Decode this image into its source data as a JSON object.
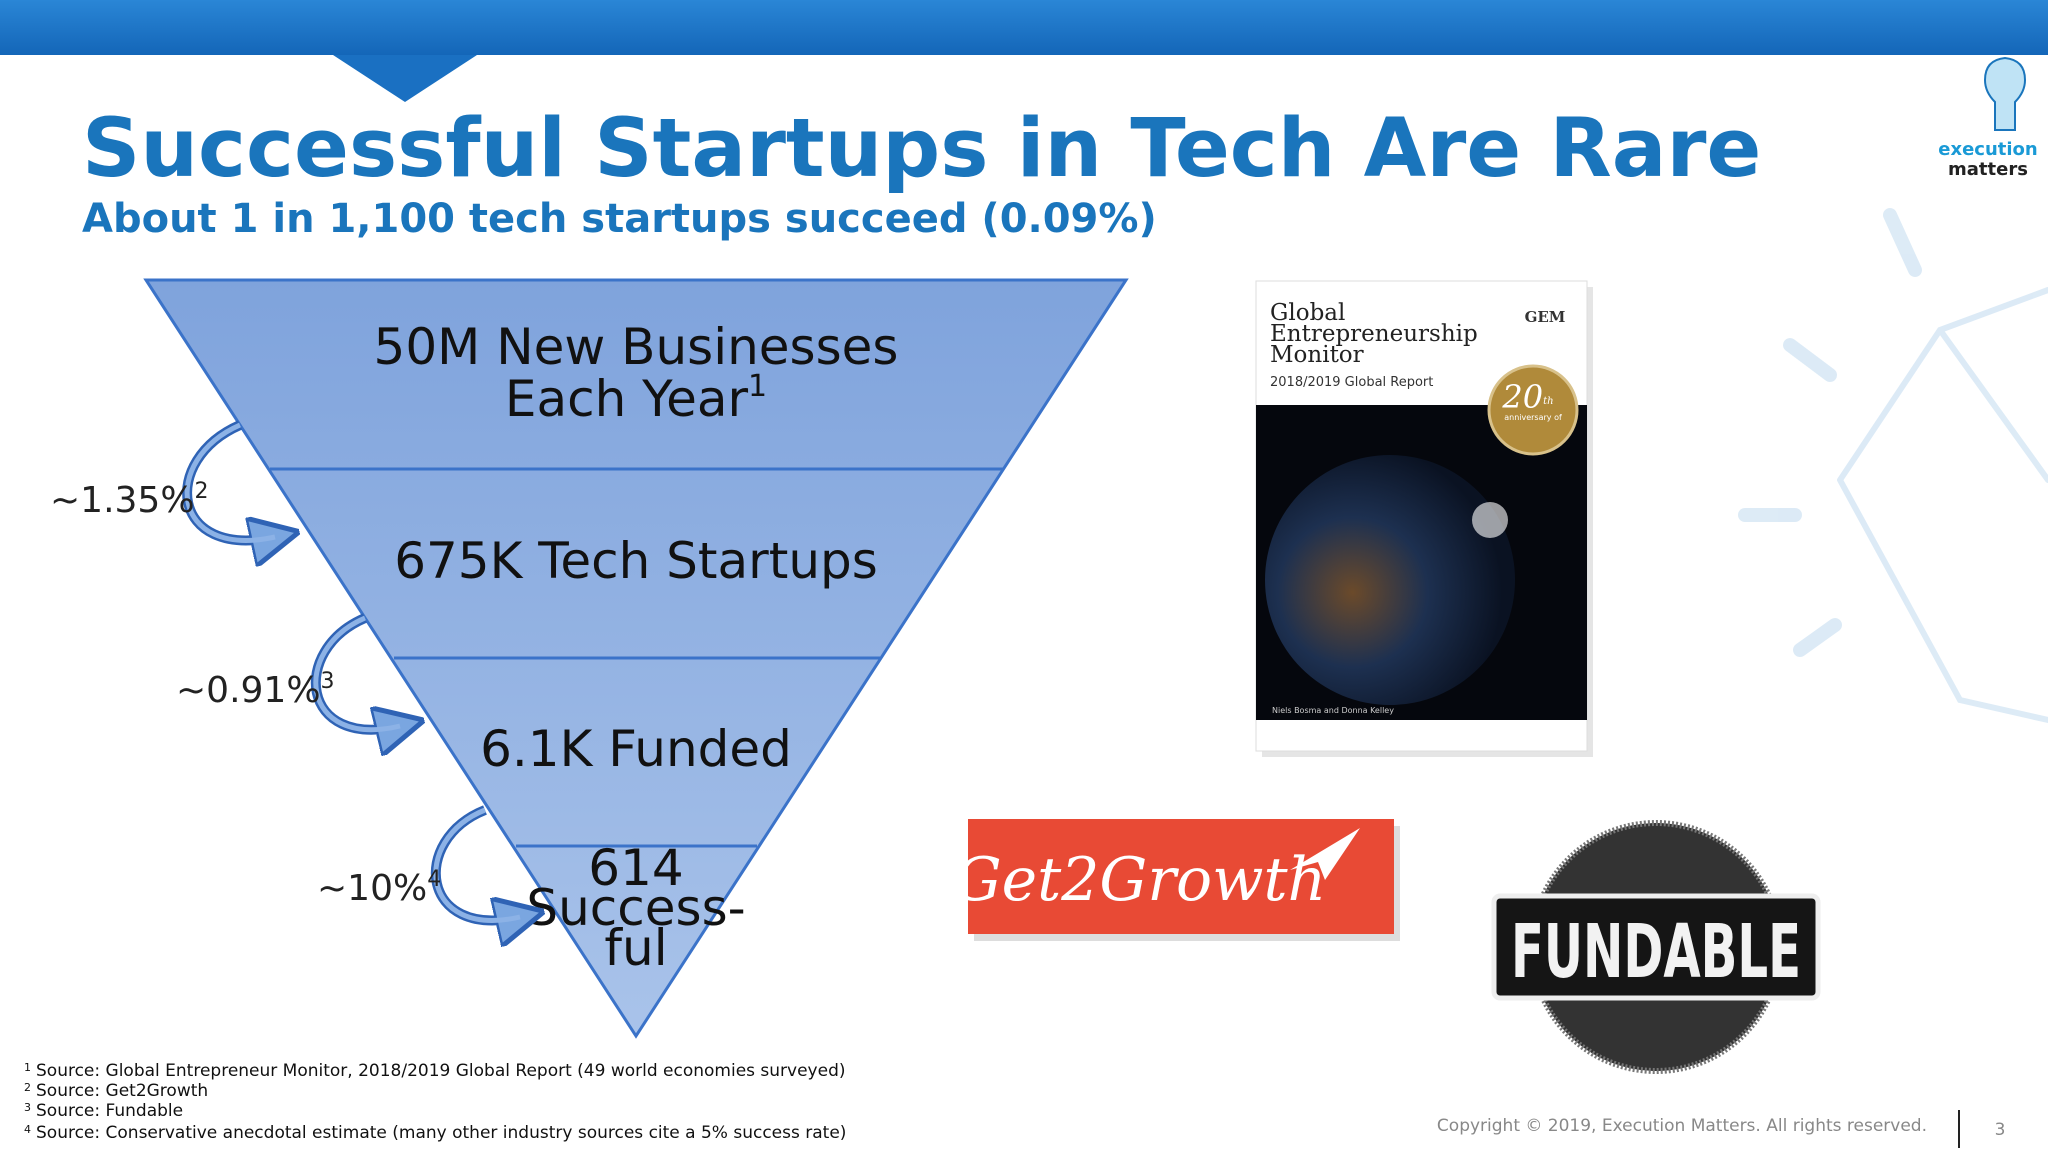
{
  "header": {
    "title": "Successful Startups in Tech Are Rare",
    "subtitle": "About 1 in 1,100 tech startups succeed (0.09%)"
  },
  "brand": {
    "line1": "execution",
    "line2": "matters"
  },
  "funnel": {
    "levels": [
      {
        "lines": [
          "50M New Businesses",
          "Each Year"
        ],
        "note": "1"
      },
      {
        "lines": [
          "675K Tech Startups"
        ]
      },
      {
        "lines": [
          "6.1K Funded"
        ]
      },
      {
        "lines": [
          "614",
          "Success-",
          "ful"
        ]
      }
    ],
    "steps": [
      {
        "rate": "~1.35%",
        "note": "2"
      },
      {
        "rate": "~0.91%",
        "note": "3"
      },
      {
        "rate": "~10%",
        "note": "4"
      }
    ]
  },
  "report": {
    "title": [
      "Global",
      "Entrepreneurship",
      "Monitor"
    ],
    "subtitle": "2018/2019 Global Report",
    "logo": "GEM",
    "badge": "20",
    "badge_sup": "th",
    "badge_text": "anniversary of",
    "authors": "Niels Bosma and Donna Kelley"
  },
  "logos": {
    "get2growth": "Get2Growth",
    "fundable": "FUNDABLE"
  },
  "footnotes": [
    {
      "mark": "1",
      "text": "Source: Global Entrepreneur Monitor, 2018/2019 Global Report (49 world economies surveyed)"
    },
    {
      "mark": "2",
      "text": "Source: Get2Growth"
    },
    {
      "mark": "3",
      "text": "Source: Fundable"
    },
    {
      "mark": "4",
      "text": "Source: Conservative anecdotal estimate (many other industry sources cite a 5% success rate)"
    }
  ],
  "footer": {
    "copyright": "Copyright © 2019, Execution Matters. All rights reserved.",
    "page": "3"
  }
}
